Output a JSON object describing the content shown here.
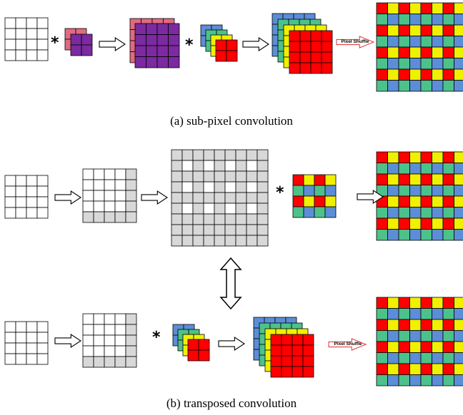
{
  "captions": {
    "a": "(a) sub-pixel convolution",
    "b": "(b) transposed convolution"
  },
  "labels": {
    "pixel_shuffle": "Pixel Shuffle",
    "multiply": "*"
  },
  "colors": {
    "grid_line": "#000000",
    "white": "#ffffff",
    "gray": "#d8d8d8",
    "pink": "#e06a80",
    "purple": "#7b2aa0",
    "blue": "#5b8ed6",
    "green": "#4cc28a",
    "yellow": "#f0f000",
    "red": "#ff0000",
    "arrow_red": "#e84040"
  }
}
